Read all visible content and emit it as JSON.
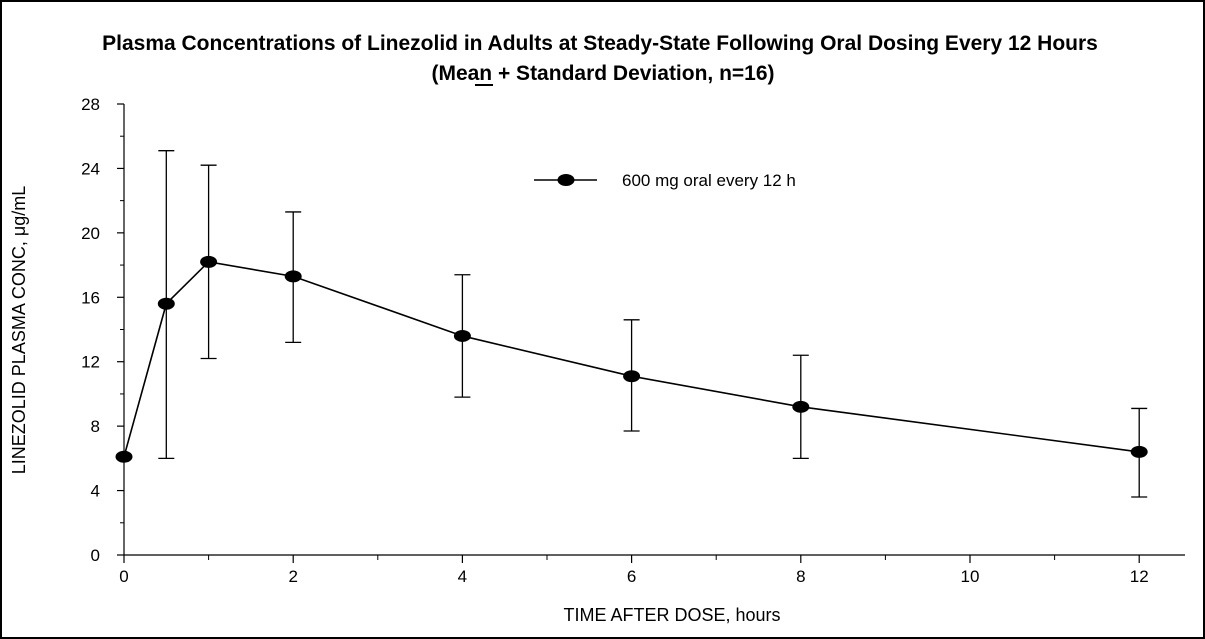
{
  "chart_data": {
    "type": "line",
    "title": "Plasma Concentrations of Linezolid in Adults at Steady-State Following Oral Dosing Every 12 Hours",
    "subtitle": "(Mean + Standard Deviation, n=16)",
    "xlabel": "TIME AFTER DOSE, hours",
    "ylabel": "LINEZOLID PLASMA CONC, μg/mL",
    "xlim": [
      0,
      12.5
    ],
    "ylim": [
      0,
      28
    ],
    "x_ticks": [
      0,
      2,
      4,
      6,
      8,
      10,
      12
    ],
    "y_ticks": [
      0,
      4,
      8,
      12,
      16,
      20,
      24,
      28
    ],
    "x_minor_ticks": [
      1,
      3,
      5,
      7,
      9,
      11
    ],
    "y_minor_ticks": [
      2,
      6,
      10,
      14,
      18,
      22,
      26
    ],
    "grid": false,
    "legend_position": "top-center",
    "colors": {
      "line": "#000000",
      "marker": "#000000"
    },
    "series": [
      {
        "name": "600 mg oral every 12 h",
        "x": [
          0,
          0.5,
          1,
          2,
          4,
          6,
          8,
          12
        ],
        "y": [
          6.1,
          15.6,
          18.2,
          17.3,
          13.6,
          11.1,
          9.2,
          6.4
        ],
        "error_upper": [
          null,
          25.1,
          24.2,
          21.3,
          17.4,
          14.6,
          12.4,
          9.1
        ],
        "error_lower": [
          null,
          6.0,
          12.2,
          13.2,
          9.8,
          7.7,
          6.0,
          3.6
        ]
      }
    ]
  }
}
